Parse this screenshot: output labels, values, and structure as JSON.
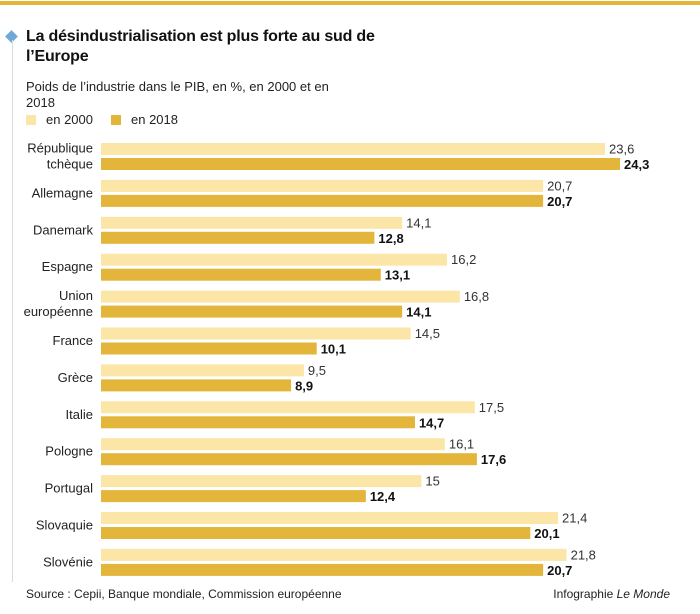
{
  "header": {
    "title": "La désindustrialisation est plus forte au sud de l’Europe",
    "subtitle": "Poids de l’industrie dans le PIB, en %, en 2000 et en 2018"
  },
  "legend": {
    "items": [
      {
        "label": "en 2000",
        "color": "#fbe6a8"
      },
      {
        "label": "en 2018",
        "color": "#e3b53b"
      }
    ]
  },
  "colors": {
    "bar_2000": "#fbe6a8",
    "bar_2018": "#e3b53b",
    "accent_rule": "#e3b53b",
    "marker": "#6fa8d6"
  },
  "chart_data": {
    "type": "bar",
    "orientation": "horizontal",
    "categories": [
      [
        "République",
        "tchèque"
      ],
      [
        "Allemagne"
      ],
      [
        "Danemark"
      ],
      [
        "Espagne"
      ],
      [
        "Union",
        "européenne"
      ],
      [
        "France"
      ],
      [
        "Grèce"
      ],
      [
        "Italie"
      ],
      [
        "Pologne"
      ],
      [
        "Portugal"
      ],
      [
        "Slovaquie"
      ],
      [
        "Slovénie"
      ]
    ],
    "series": [
      {
        "name": "en 2000",
        "values": [
          23.6,
          20.7,
          14.1,
          16.2,
          16.8,
          14.5,
          9.5,
          17.5,
          16.1,
          15,
          21.4,
          21.8
        ],
        "labels": [
          "23,6",
          "20,7",
          "14,1",
          "16,2",
          "16,8",
          "14,5",
          "9,5",
          "17,5",
          "16,1",
          "15",
          "21,4",
          "21,8"
        ]
      },
      {
        "name": "en 2018",
        "values": [
          24.3,
          20.7,
          12.8,
          13.1,
          14.1,
          10.1,
          8.9,
          14.7,
          17.6,
          12.4,
          20.1,
          20.7
        ],
        "labels": [
          "24,3",
          "20,7",
          "12,8",
          "13,1",
          "14,1",
          "10,1",
          "8,9",
          "14,7",
          "17,6",
          "12,4",
          "20,1",
          "20,7"
        ]
      }
    ],
    "xlim": [
      0,
      24.3
    ],
    "grid": false,
    "legend_position": "top-left"
  },
  "footer": {
    "source": "Source : Cepii, Banque mondiale, Commission européenne",
    "credit_prefix": "Infographie",
    "credit_name": "Le Monde"
  }
}
